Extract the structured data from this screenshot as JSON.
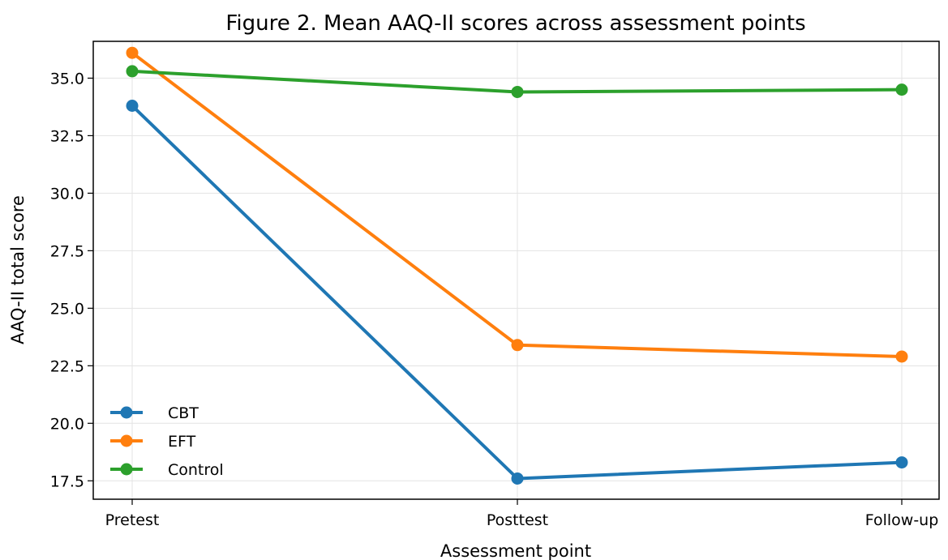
{
  "chart_data": {
    "type": "line",
    "title": "Figure 2. Mean AAQ-II scores across assessment points",
    "xlabel": "Assessment point",
    "ylabel": "AAQ-II total score",
    "categories": [
      "Pretest",
      "Posttest",
      "Follow-up"
    ],
    "ylim": [
      16.7,
      36.6
    ],
    "yticks": [
      17.5,
      20.0,
      22.5,
      25.0,
      27.5,
      30.0,
      32.5,
      35.0
    ],
    "ytick_labels": [
      "17.5",
      "20.0",
      "22.5",
      "25.0",
      "27.5",
      "30.0",
      "32.5",
      "35.0"
    ],
    "grid": true,
    "legend_position": "bottom-left",
    "series": [
      {
        "name": "CBT",
        "color": "#1f77b4",
        "values": [
          33.8,
          17.6,
          18.3
        ]
      },
      {
        "name": "EFT",
        "color": "#ff7f0e",
        "values": [
          36.1,
          23.4,
          22.9
        ]
      },
      {
        "name": "Control",
        "color": "#2ca02c",
        "values": [
          35.3,
          34.4,
          34.5
        ]
      }
    ]
  }
}
